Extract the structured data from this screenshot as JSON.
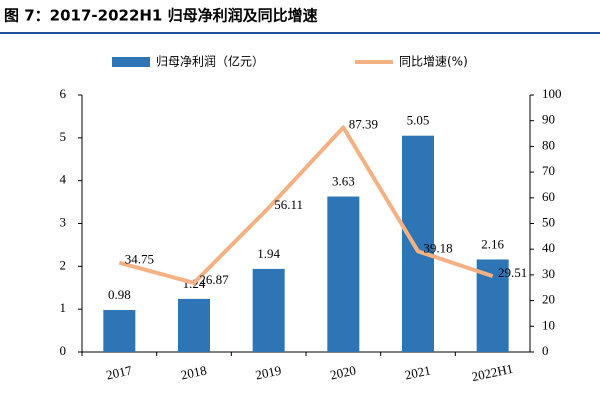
{
  "chart_data": {
    "type": "bar-line",
    "title": "图 7：2017-2022H1 归母净利润及同比增速",
    "categories": [
      "2017",
      "2018",
      "2019",
      "2020",
      "2021",
      "2022H1"
    ],
    "series": [
      {
        "name": "归母净利润（亿元）",
        "type": "bar",
        "color": "#2e75b6",
        "values": [
          0.98,
          1.24,
          1.94,
          3.63,
          5.05,
          2.16
        ]
      },
      {
        "name": "同比增速(%)",
        "type": "line",
        "axis": "y2",
        "color": "#f4b183",
        "values": [
          34.75,
          26.87,
          56.11,
          87.39,
          39.18,
          29.51
        ]
      }
    ],
    "ylim": [
      0,
      6
    ],
    "yticks": [
      0,
      1,
      2,
      3,
      4,
      5,
      6
    ],
    "y2lim": [
      0,
      100
    ],
    "y2ticks": [
      0,
      10,
      20,
      30,
      40,
      50,
      60,
      70,
      80,
      90,
      100
    ]
  }
}
